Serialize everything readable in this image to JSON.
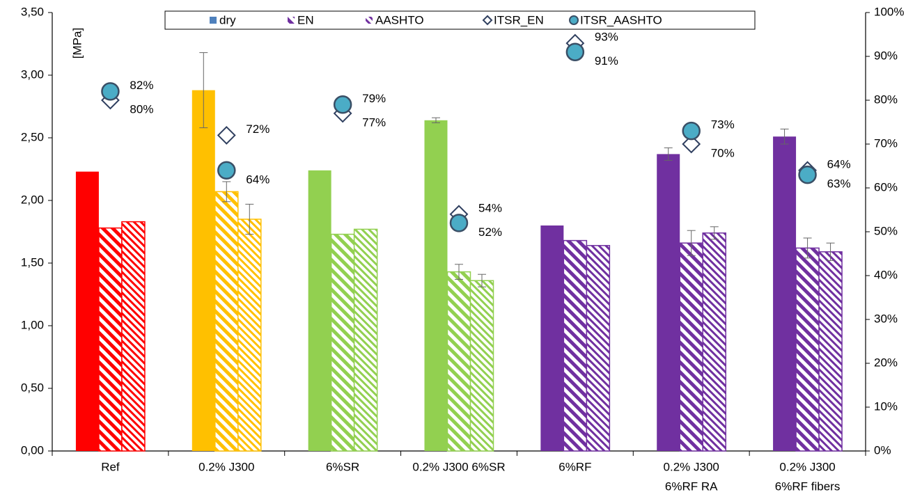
{
  "chart_data": {
    "type": "bar",
    "ylabel": "[MPa]",
    "categories": [
      [
        "Ref"
      ],
      [
        "0.2% J300"
      ],
      [
        "6%SR"
      ],
      [
        "0.2% J300 6%SR"
      ],
      [
        "6%RF"
      ],
      [
        "0.2% J300",
        "6%RF  RA"
      ],
      [
        "0.2% J300",
        "6%RF  fibers"
      ]
    ],
    "category_colors": [
      "#ff0000",
      "#ffc000",
      "#92d050",
      "#92d050",
      "#7030a0",
      "#7030a0",
      "#7030a0"
    ],
    "series": [
      {
        "name": "dry",
        "color": "#4f81bd",
        "pattern": "solid",
        "values": [
          2.23,
          2.88,
          2.24,
          2.64,
          1.8,
          2.37,
          2.51
        ],
        "errors": [
          null,
          0.3,
          null,
          0.02,
          null,
          0.05,
          0.06
        ]
      },
      {
        "name": "EN",
        "color": "#7030a0",
        "pattern": "hatch-wide",
        "values": [
          1.78,
          2.07,
          1.73,
          1.43,
          1.68,
          1.66,
          1.62
        ],
        "errors": [
          null,
          0.08,
          null,
          0.06,
          null,
          0.1,
          0.08
        ]
      },
      {
        "name": "AASHTO",
        "color": "#7030a0",
        "pattern": "hatch-narrow",
        "values": [
          1.83,
          1.85,
          1.77,
          1.36,
          1.64,
          1.74,
          1.59
        ],
        "errors": [
          null,
          0.12,
          null,
          0.05,
          null,
          0.05,
          0.07
        ]
      },
      {
        "name": "ITSR_EN",
        "color": "#ffffff",
        "marker": "diamond",
        "axis": "y2",
        "values": [
          80,
          72,
          77,
          54,
          93,
          70,
          64
        ],
        "value_labels": [
          "80%",
          "72%",
          "77%",
          "54%",
          "93%",
          "70%",
          "64%"
        ]
      },
      {
        "name": "ITSR_AASHTO",
        "color": "#4bacc6",
        "marker": "circle",
        "axis": "y2",
        "values": [
          82,
          64,
          79,
          52,
          91,
          73,
          63
        ],
        "value_labels": [
          "82%",
          "64%",
          "79%",
          "52%",
          "91%",
          "73%",
          "63%"
        ]
      }
    ],
    "ylim": [
      0,
      3.5
    ],
    "yticks": [
      {
        "value": 0,
        "label": "0,00"
      },
      {
        "value": 0.5,
        "label": "0,50"
      },
      {
        "value": 1,
        "label": "1,00"
      },
      {
        "value": 1.5,
        "label": "1,50"
      },
      {
        "value": 2,
        "label": "2,00"
      },
      {
        "value": 2.5,
        "label": "2,50"
      },
      {
        "value": 3,
        "label": "3,00"
      },
      {
        "value": 3.5,
        "label": "3,50"
      }
    ],
    "y2lim": [
      0,
      100
    ],
    "y2ticks": [
      {
        "value": 0,
        "label": "0%"
      },
      {
        "value": 10,
        "label": "10%"
      },
      {
        "value": 20,
        "label": "20%"
      },
      {
        "value": 30,
        "label": "30%"
      },
      {
        "value": 40,
        "label": "40%"
      },
      {
        "value": 50,
        "label": "50%"
      },
      {
        "value": 60,
        "label": "60%"
      },
      {
        "value": 70,
        "label": "70%"
      },
      {
        "value": 80,
        "label": "80%"
      },
      {
        "value": 90,
        "label": "90%"
      },
      {
        "value": 100,
        "label": "100%"
      }
    ],
    "legend": "top"
  }
}
